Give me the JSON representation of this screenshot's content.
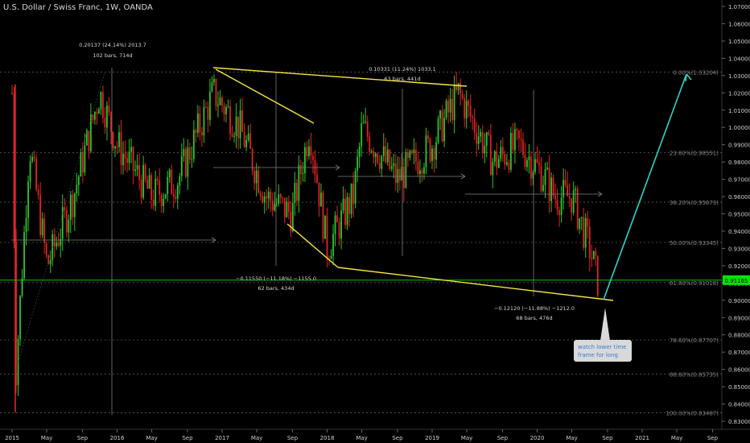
{
  "header": {
    "title": "U.S. Dollar / Swiss Franc, 1W, OANDA"
  },
  "price_axis": {
    "ticks": [
      "1.07000",
      "1.06000",
      "1.05000",
      "1.04000",
      "1.03000",
      "1.02000",
      "1.01000",
      "1.00000",
      "0.99000",
      "0.98000",
      "0.97000",
      "0.96000",
      "0.95000",
      "0.94000",
      "0.93000",
      "0.92000",
      "0.91000",
      "0.90000",
      "0.89000",
      "0.88000",
      "0.87000",
      "0.86000",
      "0.85000",
      "0.84000",
      "0.83000"
    ],
    "current_price": "0.91165",
    "current_price_color": "#00e600"
  },
  "time_axis": {
    "ticks": [
      "2015",
      "May",
      "Sep",
      "2016",
      "May",
      "Sep",
      "2017",
      "May",
      "Sep",
      "2018",
      "May",
      "Sep",
      "2019",
      "May",
      "Sep",
      "2020",
      "May",
      "Sep",
      "2021",
      "May",
      "Sep"
    ]
  },
  "colors": {
    "up": "#2ec52e",
    "down": "#e02323",
    "wedge": "#f5e642",
    "arrow": "#2fd3c7",
    "measure": "#7f7f7f",
    "fib": "#5a5a5a"
  },
  "fib_levels": [
    {
      "label": "0.00%(1.03204)",
      "price": 1.03204
    },
    {
      "label": "23.60%(0.98551)",
      "price": 0.98551
    },
    {
      "label": "38.20%(0.95673)",
      "price": 0.95673
    },
    {
      "label": "50.00%(0.93345)",
      "price": 0.93345
    },
    {
      "label": "61.80%(0.91018)",
      "price": 0.91018
    },
    {
      "label": "78.60%(0.87707)",
      "price": 0.87707
    },
    {
      "label": "88.60%(0.85735)",
      "price": 0.85735
    },
    {
      "label": "100.00%(0.83487)",
      "price": 0.83487
    }
  ],
  "measures": [
    {
      "line1": "0.20137 (24.14%) 2013.7",
      "line2": "102 bars, 714d"
    },
    {
      "line1": "0.10331 (11.24%) 1033.1",
      "line2": "63 bars, 441d"
    },
    {
      "line1": "−0.11550 (−11.18%) −1155.0",
      "line2": "62 bars, 434d"
    },
    {
      "line1": "−0.12120 (−11.88%) −1212.0",
      "line2": "68 bars, 476d"
    }
  ],
  "callout": {
    "text": "watch lower time frame for long"
  },
  "chart_data": {
    "type": "candlestick",
    "title": "U.S. Dollar / Swiss Franc, 1W, OANDA",
    "x_range": [
      "2015-01",
      "2021-09"
    ],
    "y_range": [
      0.825,
      1.075
    ],
    "last_price": 0.91165,
    "approx_weekly_close_path": [
      {
        "date": "2015-01",
        "value": 1.02
      },
      {
        "date": "2015-01-15",
        "value": 0.86
      },
      {
        "date": "2015-03",
        "value": 0.99
      },
      {
        "date": "2015-05",
        "value": 0.92
      },
      {
        "date": "2015-08",
        "value": 0.96
      },
      {
        "date": "2015-11",
        "value": 1.02
      },
      {
        "date": "2016-01",
        "value": 0.99
      },
      {
        "date": "2016-05",
        "value": 0.96
      },
      {
        "date": "2016-08",
        "value": 0.97
      },
      {
        "date": "2016-12",
        "value": 1.02
      },
      {
        "date": "2017-03",
        "value": 1.0
      },
      {
        "date": "2017-06",
        "value": 0.96
      },
      {
        "date": "2017-09",
        "value": 0.95
      },
      {
        "date": "2017-11",
        "value": 1.0
      },
      {
        "date": "2018-01",
        "value": 0.93
      },
      {
        "date": "2018-04",
        "value": 0.96
      },
      {
        "date": "2018-05",
        "value": 1.0
      },
      {
        "date": "2018-09",
        "value": 0.97
      },
      {
        "date": "2019-01",
        "value": 0.99
      },
      {
        "date": "2019-04",
        "value": 1.02
      },
      {
        "date": "2019-08",
        "value": 0.98
      },
      {
        "date": "2019-11",
        "value": 0.99
      },
      {
        "date": "2020-02",
        "value": 0.97
      },
      {
        "date": "2020-03",
        "value": 0.96
      },
      {
        "date": "2020-05",
        "value": 0.96
      },
      {
        "date": "2020-07",
        "value": 0.93
      },
      {
        "date": "2020-08",
        "value": 0.91
      }
    ]
  }
}
